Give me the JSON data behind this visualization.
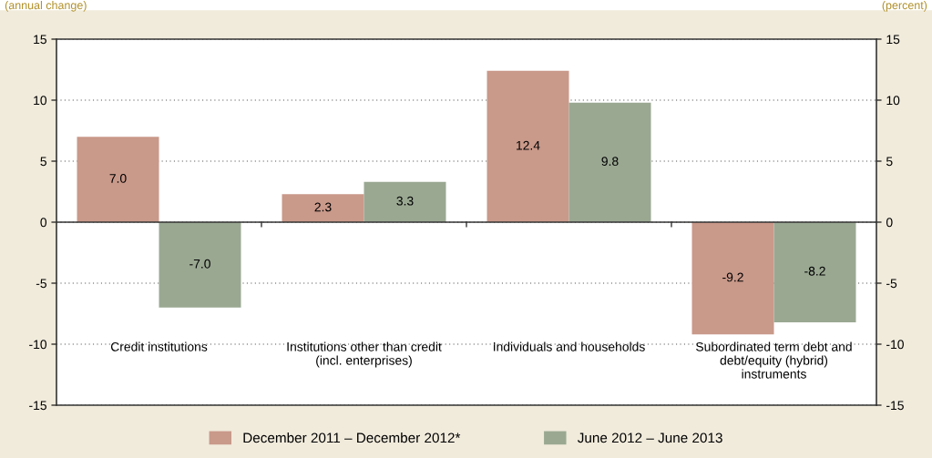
{
  "chart_data": {
    "type": "bar",
    "categories": [
      "Credit institutions",
      "Institutions other than credit\n(incl. enterprises)",
      "Individuals and households",
      "Subordinated term debt and\ndebt/equity (hybrid)\ninstruments"
    ],
    "series": [
      {
        "name": "December 2011 – December 2012*",
        "color": "#c9998a",
        "values": [
          7.0,
          2.3,
          12.4,
          -9.2
        ],
        "value_labels": [
          "7.0",
          "2.3",
          "12.4",
          "-9.2"
        ]
      },
      {
        "name": "June 2012 – June 2013",
        "color": "#9aa892",
        "values": [
          -7.0,
          3.3,
          9.8,
          -8.2
        ],
        "value_labels": [
          "-7.0",
          "3.3",
          "9.8",
          "-8.2"
        ]
      }
    ],
    "ylim": [
      -15,
      15
    ],
    "yticks": [
      -15,
      -10,
      -5,
      0,
      5,
      10,
      15
    ],
    "y2lim": [
      -15,
      15
    ],
    "y2ticks": [
      -15,
      -10,
      -5,
      0,
      5,
      10,
      15
    ],
    "grid": "y",
    "legend": "bottom",
    "annotations": [
      "(annual change)",
      "(percent)"
    ]
  }
}
